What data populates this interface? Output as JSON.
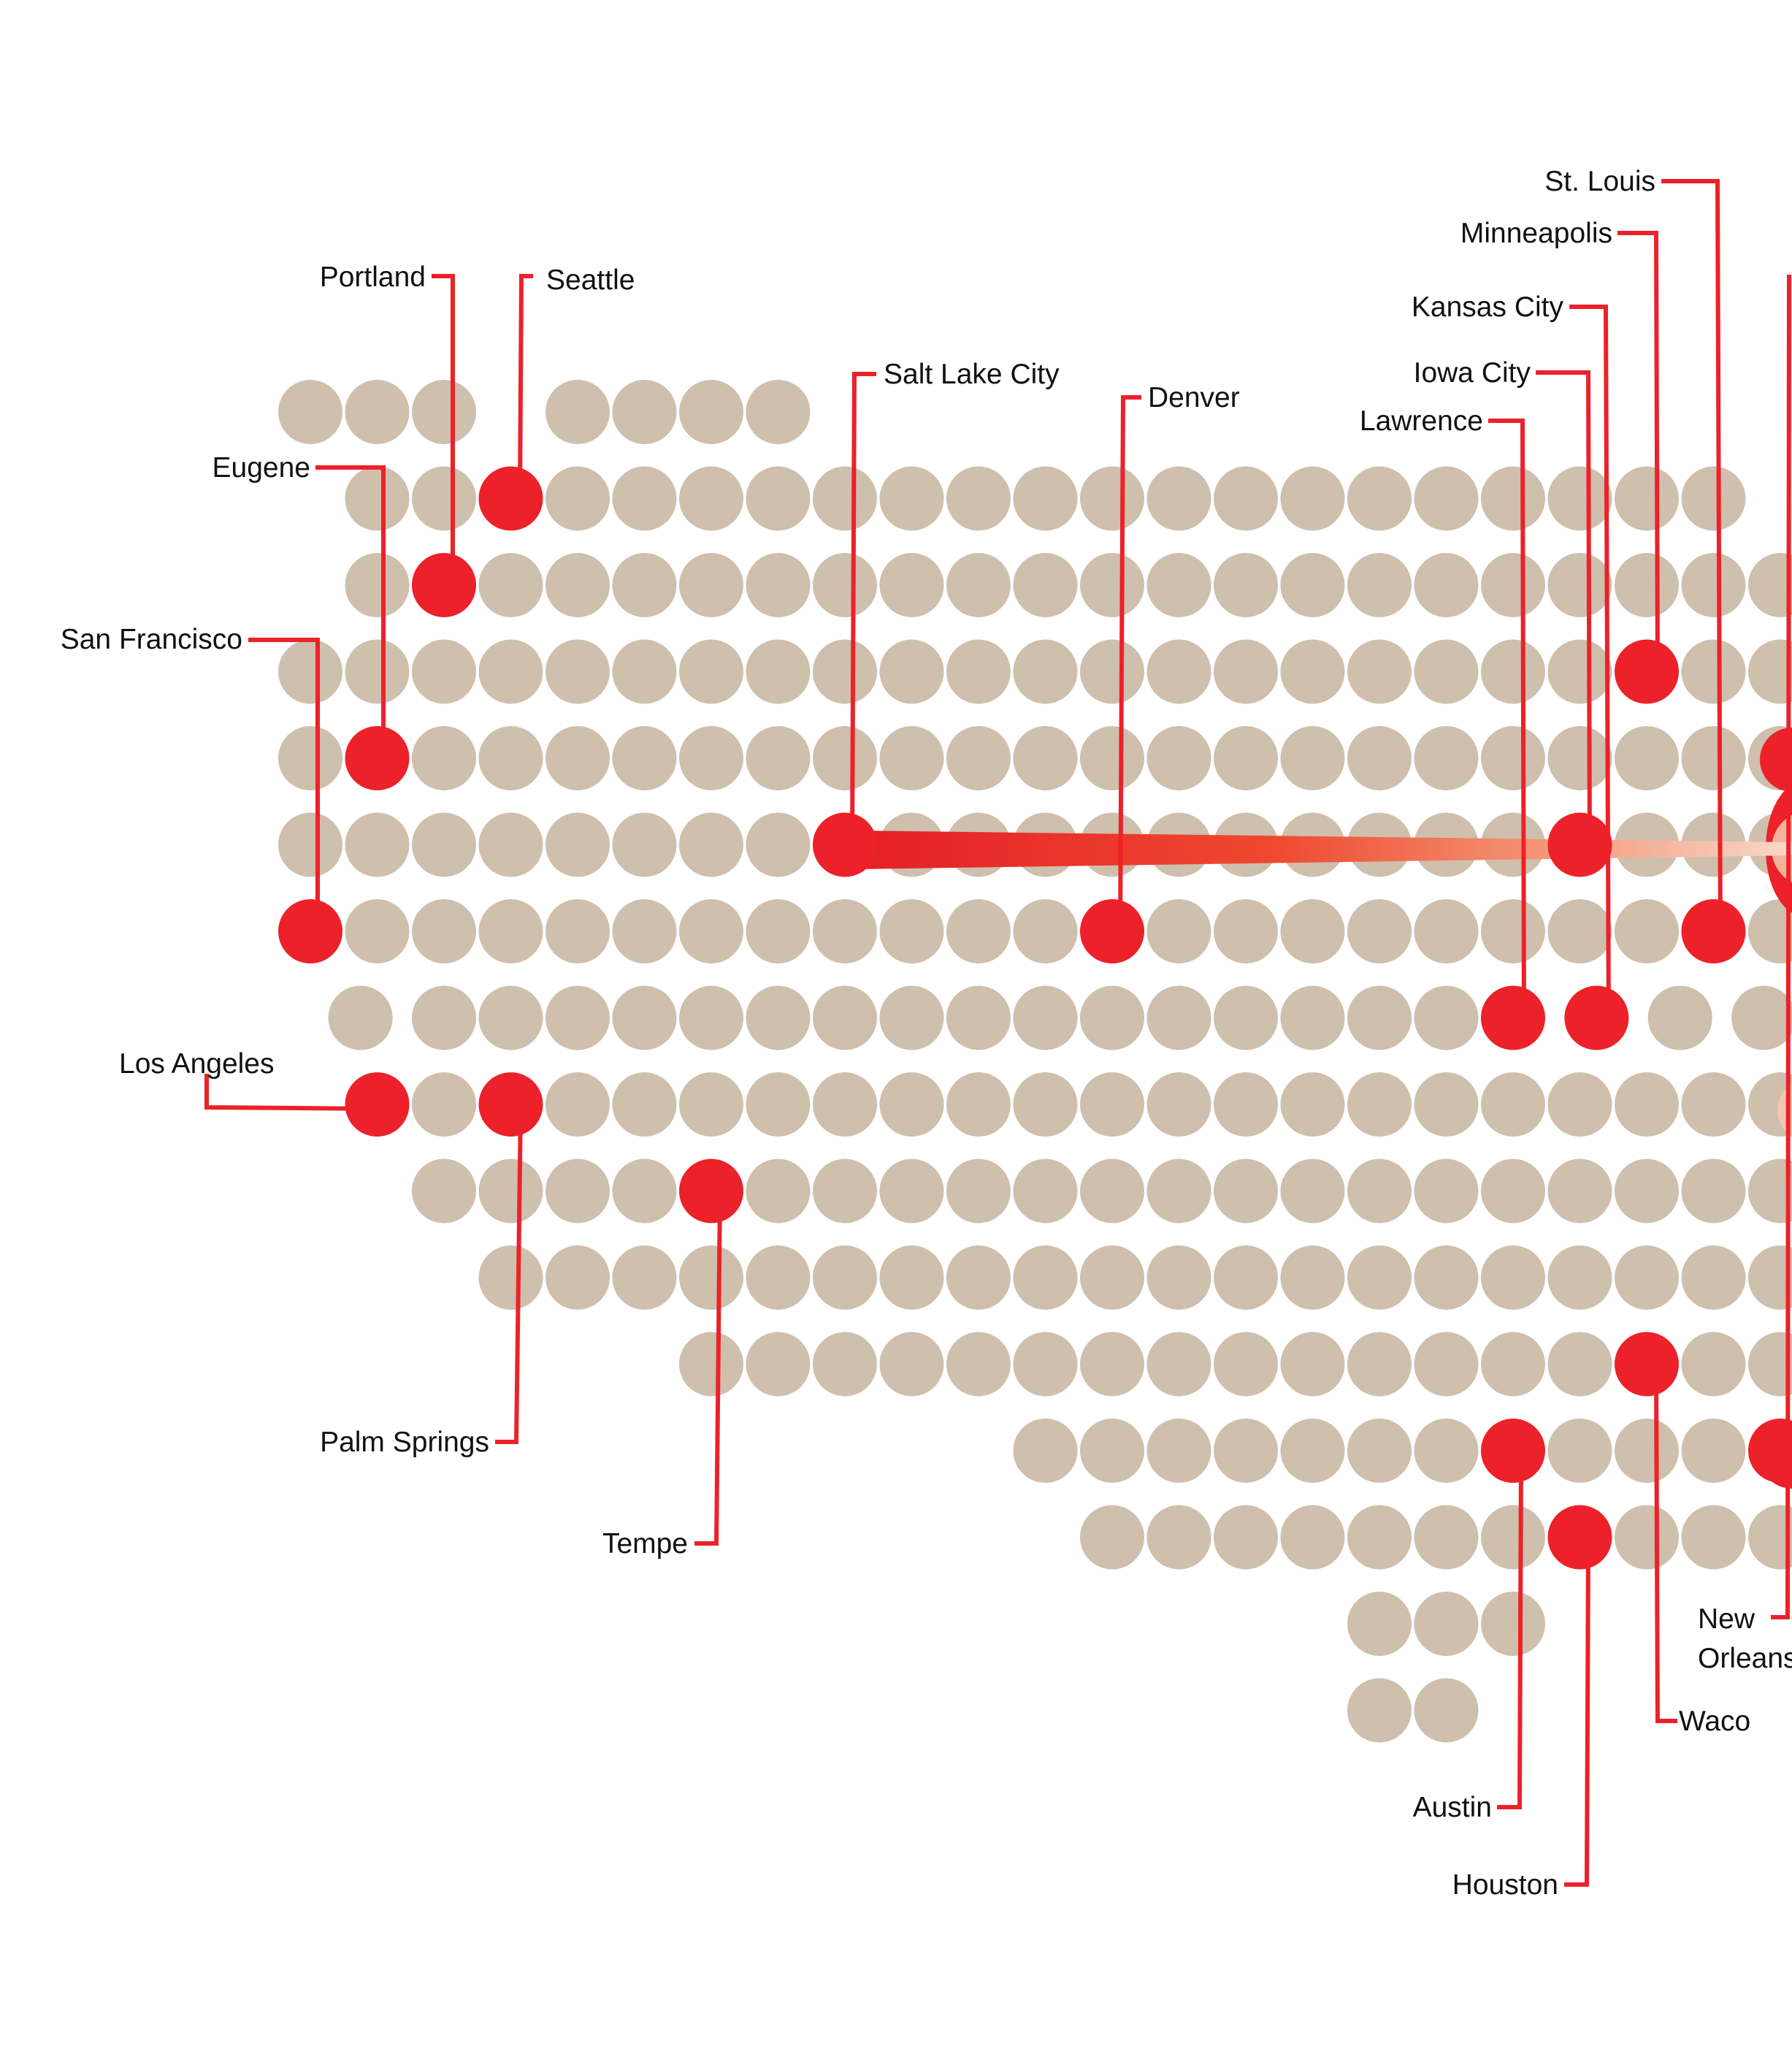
{
  "colors": {
    "background": "#ffffff",
    "grid_dot": "#cfbfad",
    "highlight": "#ec2129",
    "connector": "#ec2129",
    "label_text": "#111111",
    "beam_start": "#e41f26",
    "beam_end": "#f7d8c8"
  },
  "map": {
    "rows": [
      {
        "row": 0,
        "cols": [
          0,
          1,
          2,
          4,
          5,
          6,
          7
        ]
      },
      {
        "row": 1,
        "cols": [
          1,
          2,
          3,
          4,
          5,
          6,
          7,
          8,
          9,
          10,
          11,
          12,
          13,
          14,
          15,
          16,
          17,
          18,
          19,
          20,
          21
        ]
      },
      {
        "row": 2,
        "cols": [
          1,
          2,
          3,
          4,
          5,
          6,
          7,
          8,
          9,
          10,
          11,
          12,
          13,
          14,
          15,
          16,
          17,
          18,
          19,
          20,
          21,
          22,
          23,
          24,
          25
        ]
      },
      {
        "row": 3,
        "cols": [
          0,
          1,
          2,
          3,
          4,
          5,
          6,
          7,
          8,
          9,
          10,
          11,
          12,
          13,
          14,
          15,
          16,
          17,
          18,
          19,
          20,
          21,
          22,
          23,
          24,
          25
        ]
      },
      {
        "row": 4,
        "cols": [
          0,
          1,
          2,
          3,
          4,
          5,
          6,
          7,
          8,
          9,
          10,
          11,
          12,
          13,
          14,
          15,
          16,
          17,
          18,
          19,
          20,
          21,
          22,
          23,
          24,
          25
        ]
      },
      {
        "row": 5,
        "cols": [
          0,
          1,
          2,
          3,
          4,
          5,
          6,
          7,
          8,
          9,
          10,
          11,
          12,
          13,
          14,
          15,
          16,
          17,
          18,
          19,
          20,
          21,
          22,
          23,
          24,
          25
        ]
      },
      {
        "row": 6,
        "cols": [
          0,
          1,
          2,
          3,
          4,
          5,
          6,
          7,
          8,
          9,
          10,
          11,
          12,
          13,
          14,
          15,
          16,
          17,
          18,
          19,
          20,
          21,
          22,
          23,
          24,
          25
        ]
      },
      {
        "row": 7,
        "cols": [
          0.75,
          2,
          3,
          4,
          5,
          6,
          7,
          8,
          9,
          10,
          11,
          12,
          13,
          14,
          15,
          16,
          17,
          18,
          19.25,
          20.5,
          21.75
        ]
      },
      {
        "row": 8,
        "cols": [
          1,
          2,
          3,
          4,
          5,
          6,
          7,
          8,
          9,
          10,
          11,
          12,
          13,
          14,
          15,
          16,
          17,
          18,
          19,
          20,
          21,
          22,
          23,
          24,
          25
        ]
      },
      {
        "row": 9,
        "cols": [
          2,
          3,
          4,
          5,
          6,
          7,
          8,
          9,
          10,
          11,
          12,
          13,
          14,
          15,
          16,
          17,
          18,
          19,
          20,
          21,
          22,
          23,
          24,
          25
        ]
      },
      {
        "row": 10,
        "cols": [
          3,
          4,
          5,
          6,
          7,
          8,
          9,
          10,
          11,
          12,
          13,
          14,
          15,
          16,
          17,
          18,
          19,
          20,
          21,
          22,
          23,
          24,
          25
        ]
      },
      {
        "row": 11,
        "cols": [
          6,
          7,
          8,
          9,
          10,
          11,
          12,
          13,
          14,
          15,
          16,
          17,
          18,
          19,
          20,
          21,
          22,
          23,
          24,
          25
        ]
      },
      {
        "row": 12,
        "cols": [
          11,
          12,
          13,
          14,
          15,
          16,
          17,
          18,
          19,
          20,
          21,
          22,
          23,
          24,
          25
        ]
      },
      {
        "row": 13,
        "cols": [
          12,
          13,
          14,
          15,
          16,
          17,
          18,
          19,
          20,
          21,
          22,
          23,
          24,
          25
        ]
      },
      {
        "row": 14,
        "cols": [
          16,
          17,
          18
        ]
      },
      {
        "row": 15,
        "cols": [
          16,
          17
        ]
      }
    ],
    "cities": [
      {
        "name": "Portland",
        "row": 2,
        "col": 2
      },
      {
        "name": "Seattle",
        "row": 1,
        "col": 3
      },
      {
        "name": "Eugene",
        "row": 4,
        "col": 1
      },
      {
        "name": "San Francisco",
        "row": 6,
        "col": 0
      },
      {
        "name": "Los Angeles",
        "row": 8,
        "col": 1
      },
      {
        "name": "Palm Springs",
        "row": 8,
        "col": 3
      },
      {
        "name": "Tempe",
        "row": 9,
        "col": 6
      },
      {
        "name": "Salt Lake City",
        "row": 5,
        "col": 8
      },
      {
        "name": "Denver",
        "row": 6,
        "col": 12
      },
      {
        "name": "Lawrence",
        "row": 7,
        "col": 18
      },
      {
        "name": "Iowa City",
        "row": 5,
        "col": 19
      },
      {
        "name": "Kansas City",
        "row": 7,
        "col": 19.25
      },
      {
        "name": "Minneapolis",
        "row": 3,
        "col": 20
      },
      {
        "name": "St. Louis",
        "row": 6,
        "col": 21
      },
      {
        "name": "Waco",
        "row": 11,
        "col": 20
      },
      {
        "name": "Austin",
        "row": 12,
        "col": 18
      },
      {
        "name": "Houston",
        "row": 13,
        "col": 19
      },
      {
        "name": "New Orleans",
        "row": 12,
        "col": 22
      }
    ]
  },
  "labels": {
    "portland": "Portland",
    "seattle": "Seattle",
    "eugene": "Eugene",
    "san_francisco": "San Francisco",
    "los_angeles": "Los Angeles",
    "palm_springs": "Palm Springs",
    "tempe": "Tempe",
    "salt_lake_city": "Salt Lake City",
    "denver": "Denver",
    "lawrence": "Lawrence",
    "iowa_city": "Iowa City",
    "kansas_city": "Kansas City",
    "minneapolis": "Minneapolis",
    "st_louis": "St. Louis",
    "waco": "Waco",
    "austin": "Austin",
    "houston": "Houston",
    "new_orleans_line1": "New",
    "new_orleans_line2": "Orleans"
  }
}
